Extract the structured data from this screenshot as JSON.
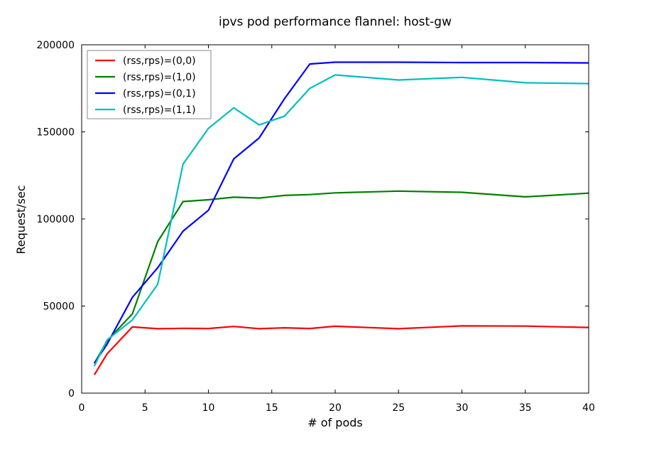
{
  "chart_data": {
    "type": "line",
    "title": "ipvs pod performance flannel: host-gw",
    "xlabel": "# of pods",
    "ylabel": "Request/sec",
    "xlim": [
      0,
      40
    ],
    "ylim": [
      0,
      200000
    ],
    "xticks": [
      0,
      5,
      10,
      15,
      20,
      25,
      30,
      35,
      40
    ],
    "yticks": [
      0,
      50000,
      100000,
      150000,
      200000
    ],
    "grid": false,
    "legend_position": "top-left",
    "series": [
      {
        "name": "(rss,rps)=(0,0)",
        "color": "#ff0000",
        "x": [
          1,
          2,
          4,
          6,
          8,
          10,
          12,
          14,
          16,
          18,
          20,
          25,
          30,
          35,
          40
        ],
        "y": [
          10500,
          22500,
          38000,
          37000,
          37200,
          37100,
          38300,
          37000,
          37500,
          37100,
          38400,
          37000,
          38600,
          38500,
          37700
        ]
      },
      {
        "name": "(rss,rps)=(1,0)",
        "color": "#008000",
        "x": [
          1,
          2,
          4,
          6,
          8,
          10,
          12,
          14,
          16,
          18,
          20,
          25,
          30,
          35,
          40
        ],
        "y": [
          17000,
          30000,
          45500,
          87000,
          110000,
          111000,
          112500,
          112000,
          113500,
          114000,
          115000,
          116000,
          115300,
          112700,
          114800
        ]
      },
      {
        "name": "(rss,rps)=(0,1)",
        "color": "#0000ff",
        "x": [
          1,
          2,
          4,
          6,
          8,
          10,
          12,
          14,
          16,
          18,
          20,
          25,
          30,
          35,
          40
        ],
        "y": [
          17200,
          28000,
          55000,
          72000,
          93000,
          105000,
          134500,
          146500,
          169000,
          189000,
          190000,
          190000,
          189800,
          189800,
          189600
        ]
      },
      {
        "name": "(rss,rps)=(1,1)",
        "color": "#00bfbf",
        "x": [
          1,
          2,
          4,
          6,
          8,
          10,
          12,
          14,
          16,
          18,
          20,
          25,
          30,
          35,
          40
        ],
        "y": [
          15500,
          30500,
          42000,
          62500,
          131500,
          152000,
          163800,
          154000,
          159000,
          175000,
          182700,
          179800,
          181300,
          178200,
          177700
        ]
      }
    ]
  }
}
